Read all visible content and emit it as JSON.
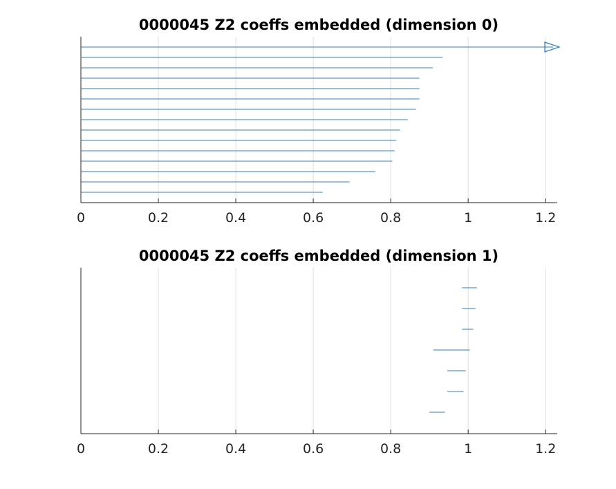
{
  "figure": {
    "background": "#ffffff",
    "axis_color": "#262626",
    "grid_color": "#e0e0e0",
    "series_color": "#2e7fbd"
  },
  "chart_data": [
    {
      "type": "barcode",
      "title": "0000045 Z2 coeffs embedded (dimension 0)",
      "xlim": [
        0,
        1.23
      ],
      "x_ticks": [
        0,
        0.2,
        0.4,
        0.6,
        0.8,
        1,
        1.2
      ],
      "x_tick_labels": [
        "0",
        "0.2",
        "0.4",
        "0.6",
        "0.8",
        "1",
        "1.2"
      ],
      "grid": "vertical",
      "infinite_marker": "open-triangle",
      "bars": [
        {
          "birth": 0,
          "death": null
        },
        {
          "birth": 0,
          "death": 0.934
        },
        {
          "birth": 0,
          "death": 0.909
        },
        {
          "birth": 0,
          "death": 0.874
        },
        {
          "birth": 0,
          "death": 0.874
        },
        {
          "birth": 0,
          "death": 0.874
        },
        {
          "birth": 0,
          "death": 0.865
        },
        {
          "birth": 0,
          "death": 0.844
        },
        {
          "birth": 0,
          "death": 0.824
        },
        {
          "birth": 0,
          "death": 0.814
        },
        {
          "birth": 0,
          "death": 0.81
        },
        {
          "birth": 0,
          "death": 0.804
        },
        {
          "birth": 0,
          "death": 0.76
        },
        {
          "birth": 0,
          "death": 0.694
        },
        {
          "birth": 0,
          "death": 0.624
        }
      ]
    },
    {
      "type": "barcode",
      "title": "0000045 Z2 coeffs embedded (dimension 1)",
      "xlim": [
        0,
        1.23
      ],
      "x_ticks": [
        0,
        0.2,
        0.4,
        0.6,
        0.8,
        1,
        1.2
      ],
      "x_tick_labels": [
        "0",
        "0.2",
        "0.4",
        "0.6",
        "0.8",
        "1",
        "1.2"
      ],
      "grid": "vertical",
      "bars": [
        {
          "birth": 0.984,
          "death": 1.023
        },
        {
          "birth": 0.984,
          "death": 1.019
        },
        {
          "birth": 0.984,
          "death": 1.013
        },
        {
          "birth": 0.91,
          "death": 1.004
        },
        {
          "birth": 0.946,
          "death": 0.994
        },
        {
          "birth": 0.946,
          "death": 0.988
        },
        {
          "birth": 0.9,
          "death": 0.94
        }
      ]
    }
  ]
}
